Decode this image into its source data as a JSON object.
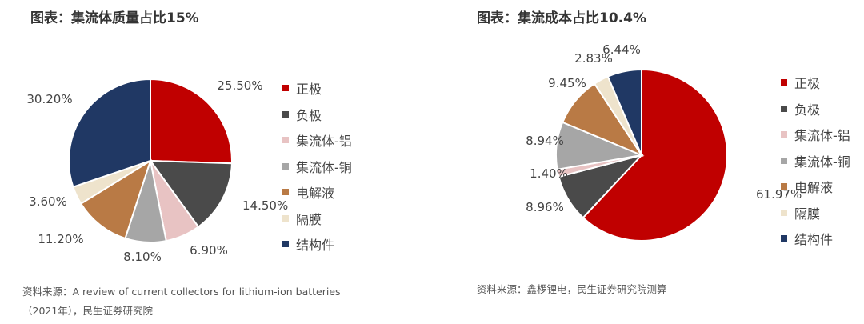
{
  "colors": {
    "正极": "#c00000",
    "负极": "#4a4a4a",
    "集流体-铝": "#e8c3c3",
    "集流体-铜": "#a6a6a6",
    "电解液": "#b97a45",
    "隔膜": "#eee3cc",
    "结构件": "#203864"
  },
  "chart_data": [
    {
      "type": "pie",
      "title": "图表：集流体质量占比15%",
      "categories": [
        "正极",
        "负极",
        "集流体-铝",
        "集流体-铜",
        "电解液",
        "隔膜",
        "结构件"
      ],
      "values": [
        25.5,
        14.5,
        6.9,
        8.1,
        11.2,
        3.6,
        30.2
      ],
      "labels": [
        "25.50%",
        "14.50%",
        "6.90%",
        "8.10%",
        "11.20%",
        "3.60%",
        "30.20%"
      ],
      "legend": "right",
      "source": [
        "资料来源：A review of current collectors for lithium-ion batteries",
        "（2021年），民生证券研究院"
      ]
    },
    {
      "type": "pie",
      "title": "图表：集流成本占比10.4%",
      "categories": [
        "正极",
        "负极",
        "集流体-铝",
        "集流体-铜",
        "电解液",
        "隔膜",
        "结构件"
      ],
      "values": [
        61.97,
        8.96,
        1.4,
        8.94,
        9.45,
        2.83,
        6.44
      ],
      "labels": [
        "61.97%",
        "8.96%",
        "1.40%",
        "8.94%",
        "9.45%",
        "2.83%",
        "6.44%"
      ],
      "legend": "right",
      "source": [
        "资料来源：鑫椤锂电，民生证券研究院测算"
      ]
    }
  ]
}
